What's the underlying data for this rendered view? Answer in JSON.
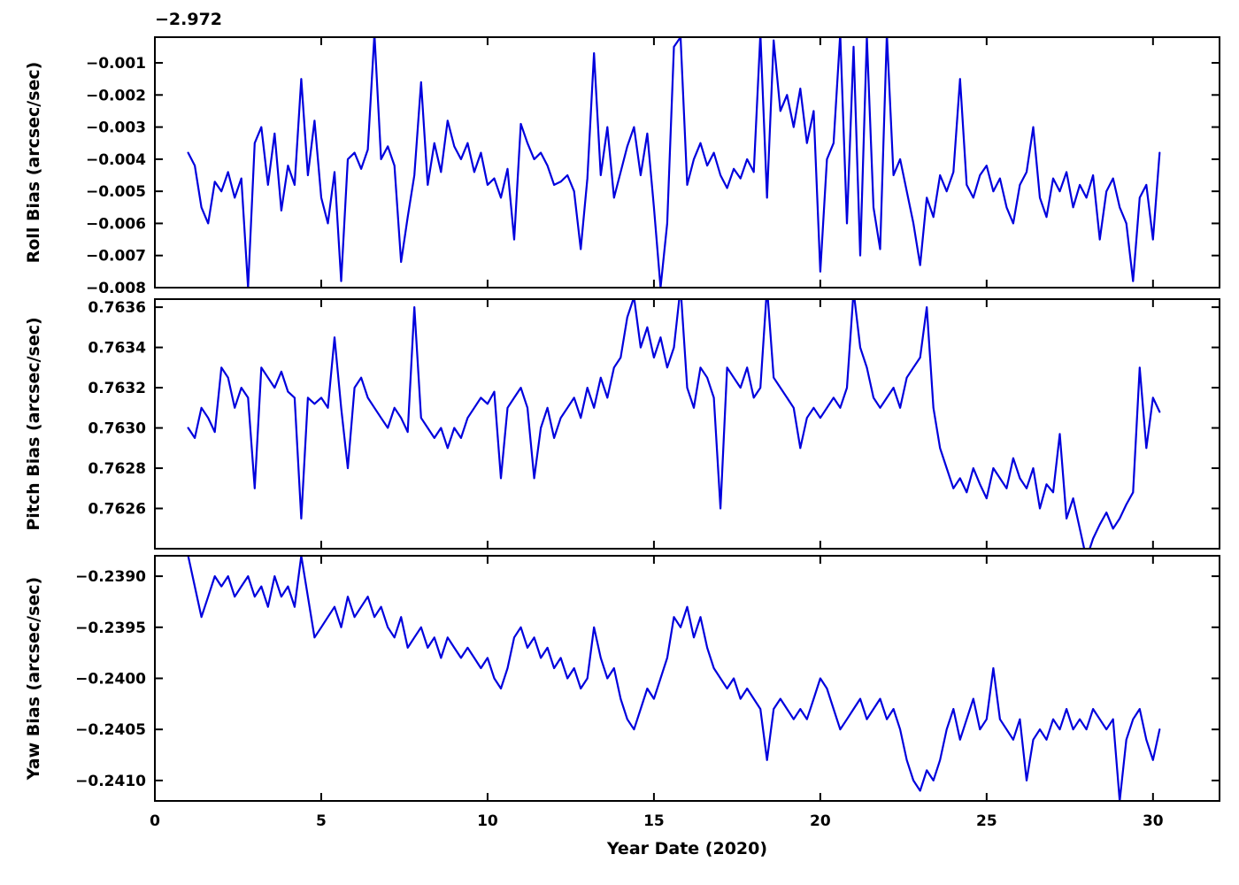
{
  "figure": {
    "xlabel": "Year Date (2020)",
    "background_color": "#ffffff",
    "line_color": "#0000dd",
    "axis_color": "#000000",
    "xlim": [
      0,
      32
    ],
    "xticks": [
      0,
      5,
      10,
      15,
      20,
      25,
      30
    ],
    "xtick_labels": [
      "0",
      "5",
      "10",
      "15",
      "20",
      "25",
      "30"
    ]
  },
  "chart_data": [
    {
      "type": "line",
      "name": "roll-bias",
      "ylabel": "Roll Bias (arcsec/sec)",
      "offset_text": "−2.972",
      "ylim": [
        -0.008,
        -0.0002
      ],
      "yticks": [
        -0.001,
        -0.002,
        -0.003,
        -0.004,
        -0.005,
        -0.006,
        -0.007,
        -0.008
      ],
      "ytick_labels": [
        "−0.001",
        "−0.002",
        "−0.003",
        "−0.004",
        "−0.005",
        "−0.006",
        "−0.007",
        "−0.008"
      ],
      "x": [
        1,
        1.2,
        1.4,
        1.6,
        1.8,
        2,
        2.2,
        2.4,
        2.6,
        2.8,
        3,
        3.2,
        3.4,
        3.6,
        3.8,
        4,
        4.2,
        4.4,
        4.6,
        4.8,
        5,
        5.2,
        5.4,
        5.6,
        5.8,
        6,
        6.2,
        6.4,
        6.6,
        6.8,
        7,
        7.2,
        7.4,
        7.6,
        7.8,
        8,
        8.2,
        8.4,
        8.6,
        8.8,
        9,
        9.2,
        9.4,
        9.6,
        9.8,
        10,
        10.2,
        10.4,
        10.6,
        10.8,
        11,
        11.2,
        11.4,
        11.6,
        11.8,
        12,
        12.2,
        12.4,
        12.6,
        12.8,
        13,
        13.2,
        13.4,
        13.6,
        13.8,
        14,
        14.2,
        14.4,
        14.6,
        14.8,
        15,
        15.2,
        15.4,
        15.6,
        15.8,
        16,
        16.2,
        16.4,
        16.6,
        16.8,
        17,
        17.2,
        17.4,
        17.6,
        17.8,
        18,
        18.2,
        18.4,
        18.6,
        18.8,
        19,
        19.2,
        19.4,
        19.6,
        19.8,
        20,
        20.2,
        20.4,
        20.6,
        20.8,
        21,
        21.2,
        21.4,
        21.6,
        21.8,
        22,
        22.2,
        22.4,
        22.6,
        22.8,
        23,
        23.2,
        23.4,
        23.6,
        23.8,
        24,
        24.2,
        24.4,
        24.6,
        24.8,
        25,
        25.2,
        25.4,
        25.6,
        25.8,
        26,
        26.2,
        26.4,
        26.6,
        26.8,
        27,
        27.2,
        27.4,
        27.6,
        27.8,
        28,
        28.2,
        28.4,
        28.6,
        28.8,
        29,
        29.2,
        29.4,
        29.6,
        29.8,
        30,
        30.2
      ],
      "y": [
        -0.0038,
        -0.0042,
        -0.0055,
        -0.006,
        -0.0047,
        -0.005,
        -0.0044,
        -0.0052,
        -0.0046,
        -0.008,
        -0.0035,
        -0.003,
        -0.0048,
        -0.0032,
        -0.0056,
        -0.0042,
        -0.0048,
        -0.0015,
        -0.0045,
        -0.0028,
        -0.0052,
        -0.006,
        -0.0044,
        -0.0078,
        -0.004,
        -0.0038,
        -0.0043,
        -0.0037,
        -0.0001,
        -0.004,
        -0.0036,
        -0.0042,
        -0.0072,
        -0.0058,
        -0.0045,
        -0.0016,
        -0.0048,
        -0.0035,
        -0.0044,
        -0.0028,
        -0.0036,
        -0.004,
        -0.0035,
        -0.0044,
        -0.0038,
        -0.0048,
        -0.0046,
        -0.0052,
        -0.0043,
        -0.0065,
        -0.0029,
        -0.0035,
        -0.004,
        -0.0038,
        -0.0042,
        -0.0048,
        -0.0047,
        -0.0045,
        -0.005,
        -0.0068,
        -0.0046,
        -0.0007,
        -0.0045,
        -0.003,
        -0.0052,
        -0.0044,
        -0.0036,
        -0.003,
        -0.0045,
        -0.0032,
        -0.0055,
        -0.008,
        -0.006,
        -0.0005,
        -0.0002,
        -0.0048,
        -0.004,
        -0.0035,
        -0.0042,
        -0.0038,
        -0.0045,
        -0.0049,
        -0.0043,
        -0.0046,
        -0.004,
        -0.0044,
        -0.0001,
        -0.0052,
        -0.0003,
        -0.0025,
        -0.002,
        -0.003,
        -0.0018,
        -0.0035,
        -0.0025,
        -0.0075,
        -0.004,
        -0.0035,
        -0.0001,
        -0.006,
        -0.0005,
        -0.007,
        -0.0002,
        -0.0055,
        -0.0068,
        -0.0001,
        -0.0045,
        -0.004,
        -0.005,
        -0.006,
        -0.0073,
        -0.0052,
        -0.0058,
        -0.0045,
        -0.005,
        -0.0044,
        -0.0015,
        -0.0048,
        -0.0052,
        -0.0045,
        -0.0042,
        -0.005,
        -0.0046,
        -0.0055,
        -0.006,
        -0.0048,
        -0.0044,
        -0.003,
        -0.0052,
        -0.0058,
        -0.0046,
        -0.005,
        -0.0044,
        -0.0055,
        -0.0048,
        -0.0052,
        -0.0045,
        -0.0065,
        -0.005,
        -0.0046,
        -0.0055,
        -0.006,
        -0.0078,
        -0.0052,
        -0.0048,
        -0.0065,
        -0.0038
      ]
    },
    {
      "type": "line",
      "name": "pitch-bias",
      "ylabel": "Pitch Bias (arcsec/sec)",
      "offset_text": "",
      "ylim": [
        0.7624,
        0.76364
      ],
      "yticks": [
        0.7636,
        0.7634,
        0.7632,
        0.763,
        0.7628,
        0.7626
      ],
      "ytick_labels": [
        "0.7636",
        "0.7634",
        "0.7632",
        "0.7630",
        "0.7628",
        "0.7626"
      ],
      "x": [
        1,
        1.2,
        1.4,
        1.6,
        1.8,
        2,
        2.2,
        2.4,
        2.6,
        2.8,
        3,
        3.2,
        3.4,
        3.6,
        3.8,
        4,
        4.2,
        4.4,
        4.6,
        4.8,
        5,
        5.2,
        5.4,
        5.6,
        5.8,
        6,
        6.2,
        6.4,
        6.6,
        6.8,
        7,
        7.2,
        7.4,
        7.6,
        7.8,
        8,
        8.2,
        8.4,
        8.6,
        8.8,
        9,
        9.2,
        9.4,
        9.6,
        9.8,
        10,
        10.2,
        10.4,
        10.6,
        10.8,
        11,
        11.2,
        11.4,
        11.6,
        11.8,
        12,
        12.2,
        12.4,
        12.6,
        12.8,
        13,
        13.2,
        13.4,
        13.6,
        13.8,
        14,
        14.2,
        14.4,
        14.6,
        14.8,
        15,
        15.2,
        15.4,
        15.6,
        15.8,
        16,
        16.2,
        16.4,
        16.6,
        16.8,
        17,
        17.2,
        17.4,
        17.6,
        17.8,
        18,
        18.2,
        18.4,
        18.6,
        18.8,
        19,
        19.2,
        19.4,
        19.6,
        19.8,
        20,
        20.2,
        20.4,
        20.6,
        20.8,
        21,
        21.2,
        21.4,
        21.6,
        21.8,
        22,
        22.2,
        22.4,
        22.6,
        22.8,
        23,
        23.2,
        23.4,
        23.6,
        23.8,
        24,
        24.2,
        24.4,
        24.6,
        24.8,
        25,
        25.2,
        25.4,
        25.6,
        25.8,
        26,
        26.2,
        26.4,
        26.6,
        26.8,
        27,
        27.2,
        27.4,
        27.6,
        27.8,
        28,
        28.2,
        28.4,
        28.6,
        28.8,
        29,
        29.2,
        29.4,
        29.6,
        29.8,
        30,
        30.2
      ],
      "y": [
        0.763,
        0.76295,
        0.7631,
        0.76305,
        0.76298,
        0.7633,
        0.76325,
        0.7631,
        0.7632,
        0.76315,
        0.7627,
        0.7633,
        0.76325,
        0.7632,
        0.76328,
        0.76318,
        0.76315,
        0.76255,
        0.76315,
        0.76312,
        0.76315,
        0.7631,
        0.76345,
        0.7631,
        0.7628,
        0.7632,
        0.76325,
        0.76315,
        0.7631,
        0.76305,
        0.763,
        0.7631,
        0.76305,
        0.76298,
        0.7636,
        0.76305,
        0.763,
        0.76295,
        0.763,
        0.7629,
        0.763,
        0.76295,
        0.76305,
        0.7631,
        0.76315,
        0.76312,
        0.76318,
        0.76275,
        0.7631,
        0.76315,
        0.7632,
        0.7631,
        0.76275,
        0.763,
        0.7631,
        0.76295,
        0.76305,
        0.7631,
        0.76315,
        0.76305,
        0.7632,
        0.7631,
        0.76325,
        0.76315,
        0.7633,
        0.76335,
        0.76355,
        0.76365,
        0.7634,
        0.7635,
        0.76335,
        0.76345,
        0.7633,
        0.7634,
        0.7637,
        0.7632,
        0.7631,
        0.7633,
        0.76325,
        0.76315,
        0.7626,
        0.7633,
        0.76325,
        0.7632,
        0.7633,
        0.76315,
        0.7632,
        0.7637,
        0.76325,
        0.7632,
        0.76315,
        0.7631,
        0.7629,
        0.76305,
        0.7631,
        0.76305,
        0.7631,
        0.76315,
        0.7631,
        0.7632,
        0.76368,
        0.7634,
        0.7633,
        0.76315,
        0.7631,
        0.76315,
        0.7632,
        0.7631,
        0.76325,
        0.7633,
        0.76335,
        0.7636,
        0.7631,
        0.7629,
        0.7628,
        0.7627,
        0.76275,
        0.76268,
        0.7628,
        0.76272,
        0.76265,
        0.7628,
        0.76275,
        0.7627,
        0.76285,
        0.76275,
        0.7627,
        0.7628,
        0.7626,
        0.76272,
        0.76268,
        0.76297,
        0.76255,
        0.76265,
        0.7625,
        0.76235,
        0.76245,
        0.76252,
        0.76258,
        0.7625,
        0.76255,
        0.76262,
        0.76268,
        0.7633,
        0.7629,
        0.76315,
        0.76308
      ]
    },
    {
      "type": "line",
      "name": "yaw-bias",
      "ylabel": "Yaw Bias (arcsec/sec)",
      "offset_text": "",
      "ylim": [
        -0.2412,
        -0.2388
      ],
      "yticks": [
        -0.239,
        -0.2395,
        -0.24,
        -0.2405,
        -0.241
      ],
      "ytick_labels": [
        "−0.2390",
        "−0.2395",
        "−0.2400",
        "−0.2405",
        "−0.2410"
      ],
      "x": [
        1,
        1.2,
        1.4,
        1.6,
        1.8,
        2,
        2.2,
        2.4,
        2.6,
        2.8,
        3,
        3.2,
        3.4,
        3.6,
        3.8,
        4,
        4.2,
        4.4,
        4.6,
        4.8,
        5,
        5.2,
        5.4,
        5.6,
        5.8,
        6,
        6.2,
        6.4,
        6.6,
        6.8,
        7,
        7.2,
        7.4,
        7.6,
        7.8,
        8,
        8.2,
        8.4,
        8.6,
        8.8,
        9,
        9.2,
        9.4,
        9.6,
        9.8,
        10,
        10.2,
        10.4,
        10.6,
        10.8,
        11,
        11.2,
        11.4,
        11.6,
        11.8,
        12,
        12.2,
        12.4,
        12.6,
        12.8,
        13,
        13.2,
        13.4,
        13.6,
        13.8,
        14,
        14.2,
        14.4,
        14.6,
        14.8,
        15,
        15.2,
        15.4,
        15.6,
        15.8,
        16,
        16.2,
        16.4,
        16.6,
        16.8,
        17,
        17.2,
        17.4,
        17.6,
        17.8,
        18,
        18.2,
        18.4,
        18.6,
        18.8,
        19,
        19.2,
        19.4,
        19.6,
        19.8,
        20,
        20.2,
        20.4,
        20.6,
        20.8,
        21,
        21.2,
        21.4,
        21.6,
        21.8,
        22,
        22.2,
        22.4,
        22.6,
        22.8,
        23,
        23.2,
        23.4,
        23.6,
        23.8,
        24,
        24.2,
        24.4,
        24.6,
        24.8,
        25,
        25.2,
        25.4,
        25.6,
        25.8,
        26,
        26.2,
        26.4,
        26.6,
        26.8,
        27,
        27.2,
        27.4,
        27.6,
        27.8,
        28,
        28.2,
        28.4,
        28.6,
        28.8,
        29,
        29.2,
        29.4,
        29.6,
        29.8,
        30,
        30.2
      ],
      "y": [
        -0.2388,
        -0.2391,
        -0.2394,
        -0.2392,
        -0.239,
        -0.2391,
        -0.239,
        -0.2392,
        -0.2391,
        -0.239,
        -0.2392,
        -0.2391,
        -0.2393,
        -0.239,
        -0.2392,
        -0.2391,
        -0.2393,
        -0.2388,
        -0.2392,
        -0.2396,
        -0.2395,
        -0.2394,
        -0.2393,
        -0.2395,
        -0.2392,
        -0.2394,
        -0.2393,
        -0.2392,
        -0.2394,
        -0.2393,
        -0.2395,
        -0.2396,
        -0.2394,
        -0.2397,
        -0.2396,
        -0.2395,
        -0.2397,
        -0.2396,
        -0.2398,
        -0.2396,
        -0.2397,
        -0.2398,
        -0.2397,
        -0.2398,
        -0.2399,
        -0.2398,
        -0.24,
        -0.2401,
        -0.2399,
        -0.2396,
        -0.2395,
        -0.2397,
        -0.2396,
        -0.2398,
        -0.2397,
        -0.2399,
        -0.2398,
        -0.24,
        -0.2399,
        -0.2401,
        -0.24,
        -0.2395,
        -0.2398,
        -0.24,
        -0.2399,
        -0.2402,
        -0.2404,
        -0.2405,
        -0.2403,
        -0.2401,
        -0.2402,
        -0.24,
        -0.2398,
        -0.2394,
        -0.2395,
        -0.2393,
        -0.2396,
        -0.2394,
        -0.2397,
        -0.2399,
        -0.24,
        -0.2401,
        -0.24,
        -0.2402,
        -0.2401,
        -0.2402,
        -0.2403,
        -0.2408,
        -0.2403,
        -0.2402,
        -0.2403,
        -0.2404,
        -0.2403,
        -0.2404,
        -0.2402,
        -0.24,
        -0.2401,
        -0.2403,
        -0.2405,
        -0.2404,
        -0.2403,
        -0.2402,
        -0.2404,
        -0.2403,
        -0.2402,
        -0.2404,
        -0.2403,
        -0.2405,
        -0.2408,
        -0.241,
        -0.2411,
        -0.2409,
        -0.241,
        -0.2408,
        -0.2405,
        -0.2403,
        -0.2406,
        -0.2404,
        -0.2402,
        -0.2405,
        -0.2404,
        -0.2399,
        -0.2404,
        -0.2405,
        -0.2406,
        -0.2404,
        -0.241,
        -0.2406,
        -0.2405,
        -0.2406,
        -0.2404,
        -0.2405,
        -0.2403,
        -0.2405,
        -0.2404,
        -0.2405,
        -0.2403,
        -0.2404,
        -0.2405,
        -0.2404,
        -0.2412,
        -0.2406,
        -0.2404,
        -0.2403,
        -0.2406,
        -0.2408,
        -0.2405
      ]
    }
  ]
}
